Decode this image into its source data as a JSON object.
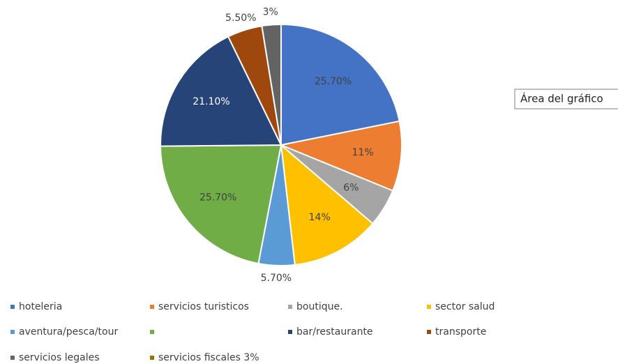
{
  "chart_data": {
    "type": "pie",
    "categories": [
      "hoteleria",
      "servicios turisticos",
      "boutique.",
      "sector salud",
      "aventura/pesca/tour",
      null,
      "bar/restaurante",
      "transporte",
      "servicios legales",
      "servicios fiscales 3%"
    ],
    "values": [
      25.7,
      11,
      6,
      14,
      5.7,
      25.7,
      21.1,
      5.5,
      3,
      null
    ],
    "value_labels": [
      "25.70%",
      "11%",
      "6%",
      "14%",
      "5.70%",
      "25.70%",
      "21.10%",
      "5.50%",
      "3%",
      null
    ],
    "colors": [
      "#4472c4",
      "#ed7d31",
      "#a5a5a5",
      "#ffc000",
      "#5b9bd5",
      "#70ad47",
      "#264478",
      "#9e480e",
      "#636363",
      "#997300"
    ],
    "annotation": "Área del gráfico",
    "legend": "bottom"
  }
}
